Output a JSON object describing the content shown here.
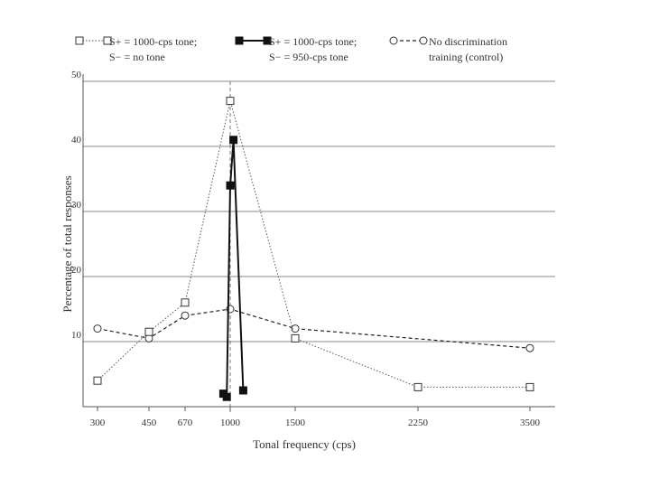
{
  "chart_data": {
    "type": "line",
    "xlabel": "Tonal frequency (cps)",
    "ylabel": "Percentage of total responses",
    "x_ticks": [
      300,
      450,
      670,
      1000,
      1500,
      2250,
      3500
    ],
    "y_ticks": [
      10,
      20,
      30,
      40,
      50
    ],
    "ylim": [
      0,
      50
    ],
    "grid": "horizontal",
    "reference_line_x": 1000,
    "series": [
      {
        "name": "S+ = 1000-cps tone; S− = no tone",
        "legend_lines": [
          "S+ = 1000-cps tone;",
          "S− = no tone"
        ],
        "marker": "open-square",
        "line_style": "dotted",
        "points": [
          [
            300,
            4
          ],
          [
            450,
            11.5
          ],
          [
            670,
            16
          ],
          [
            1000,
            47
          ],
          [
            1500,
            10.5
          ],
          [
            2250,
            3
          ],
          [
            3500,
            3
          ]
        ]
      },
      {
        "name": "S+ = 1000-cps tone; S− = 950-cps tone",
        "legend_lines": [
          "S+ = 1000-cps tone;",
          "S− = 950-cps tone"
        ],
        "marker": "filled-square",
        "line_style": "solid",
        "points": [
          [
            950,
            2
          ],
          [
            975,
            1.5
          ],
          [
            1000,
            34
          ],
          [
            1025,
            41
          ],
          [
            1100,
            2.5
          ]
        ]
      },
      {
        "name": "No discrimination training (control)",
        "legend_lines": [
          "No discrimination",
          "training (control)"
        ],
        "marker": "open-circle",
        "line_style": "dashed",
        "points": [
          [
            300,
            12
          ],
          [
            450,
            10.5
          ],
          [
            670,
            14
          ],
          [
            1000,
            15
          ],
          [
            1500,
            12
          ],
          [
            3500,
            9
          ]
        ]
      }
    ]
  }
}
